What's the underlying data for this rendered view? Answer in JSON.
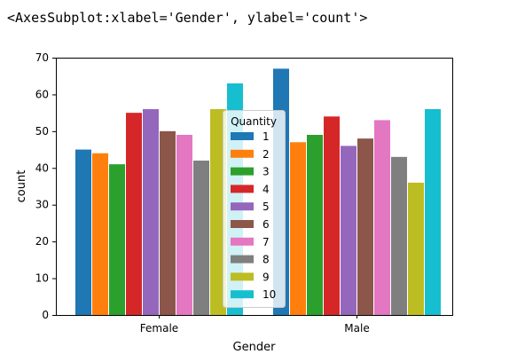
{
  "output": {
    "repr": "<AxesSubplot:xlabel='Gender', ylabel='count'>"
  },
  "chart_data": {
    "type": "bar",
    "title": "",
    "xlabel": "Gender",
    "ylabel": "count",
    "categories": [
      "Female",
      "Male"
    ],
    "ylim": [
      0,
      70
    ],
    "yticks": [
      0,
      10,
      20,
      30,
      40,
      50,
      60,
      70
    ],
    "grid": false,
    "legend": {
      "title": "Quantity",
      "placement": "center"
    },
    "series": [
      {
        "name": "1",
        "color": "#1f77b4",
        "values": [
          45,
          67
        ]
      },
      {
        "name": "2",
        "color": "#ff7f0e",
        "values": [
          44,
          47
        ]
      },
      {
        "name": "3",
        "color": "#2ca02c",
        "values": [
          41,
          49
        ]
      },
      {
        "name": "4",
        "color": "#d62728",
        "values": [
          55,
          54
        ]
      },
      {
        "name": "5",
        "color": "#9467bd",
        "values": [
          56,
          46
        ]
      },
      {
        "name": "6",
        "color": "#8c564b",
        "values": [
          50,
          48
        ]
      },
      {
        "name": "7",
        "color": "#e377c2",
        "values": [
          49,
          53
        ]
      },
      {
        "name": "8",
        "color": "#7f7f7f",
        "values": [
          42,
          43
        ]
      },
      {
        "name": "9",
        "color": "#bcbd22",
        "values": [
          56,
          36
        ]
      },
      {
        "name": "10",
        "color": "#17becf",
        "values": [
          63,
          56
        ]
      }
    ]
  }
}
